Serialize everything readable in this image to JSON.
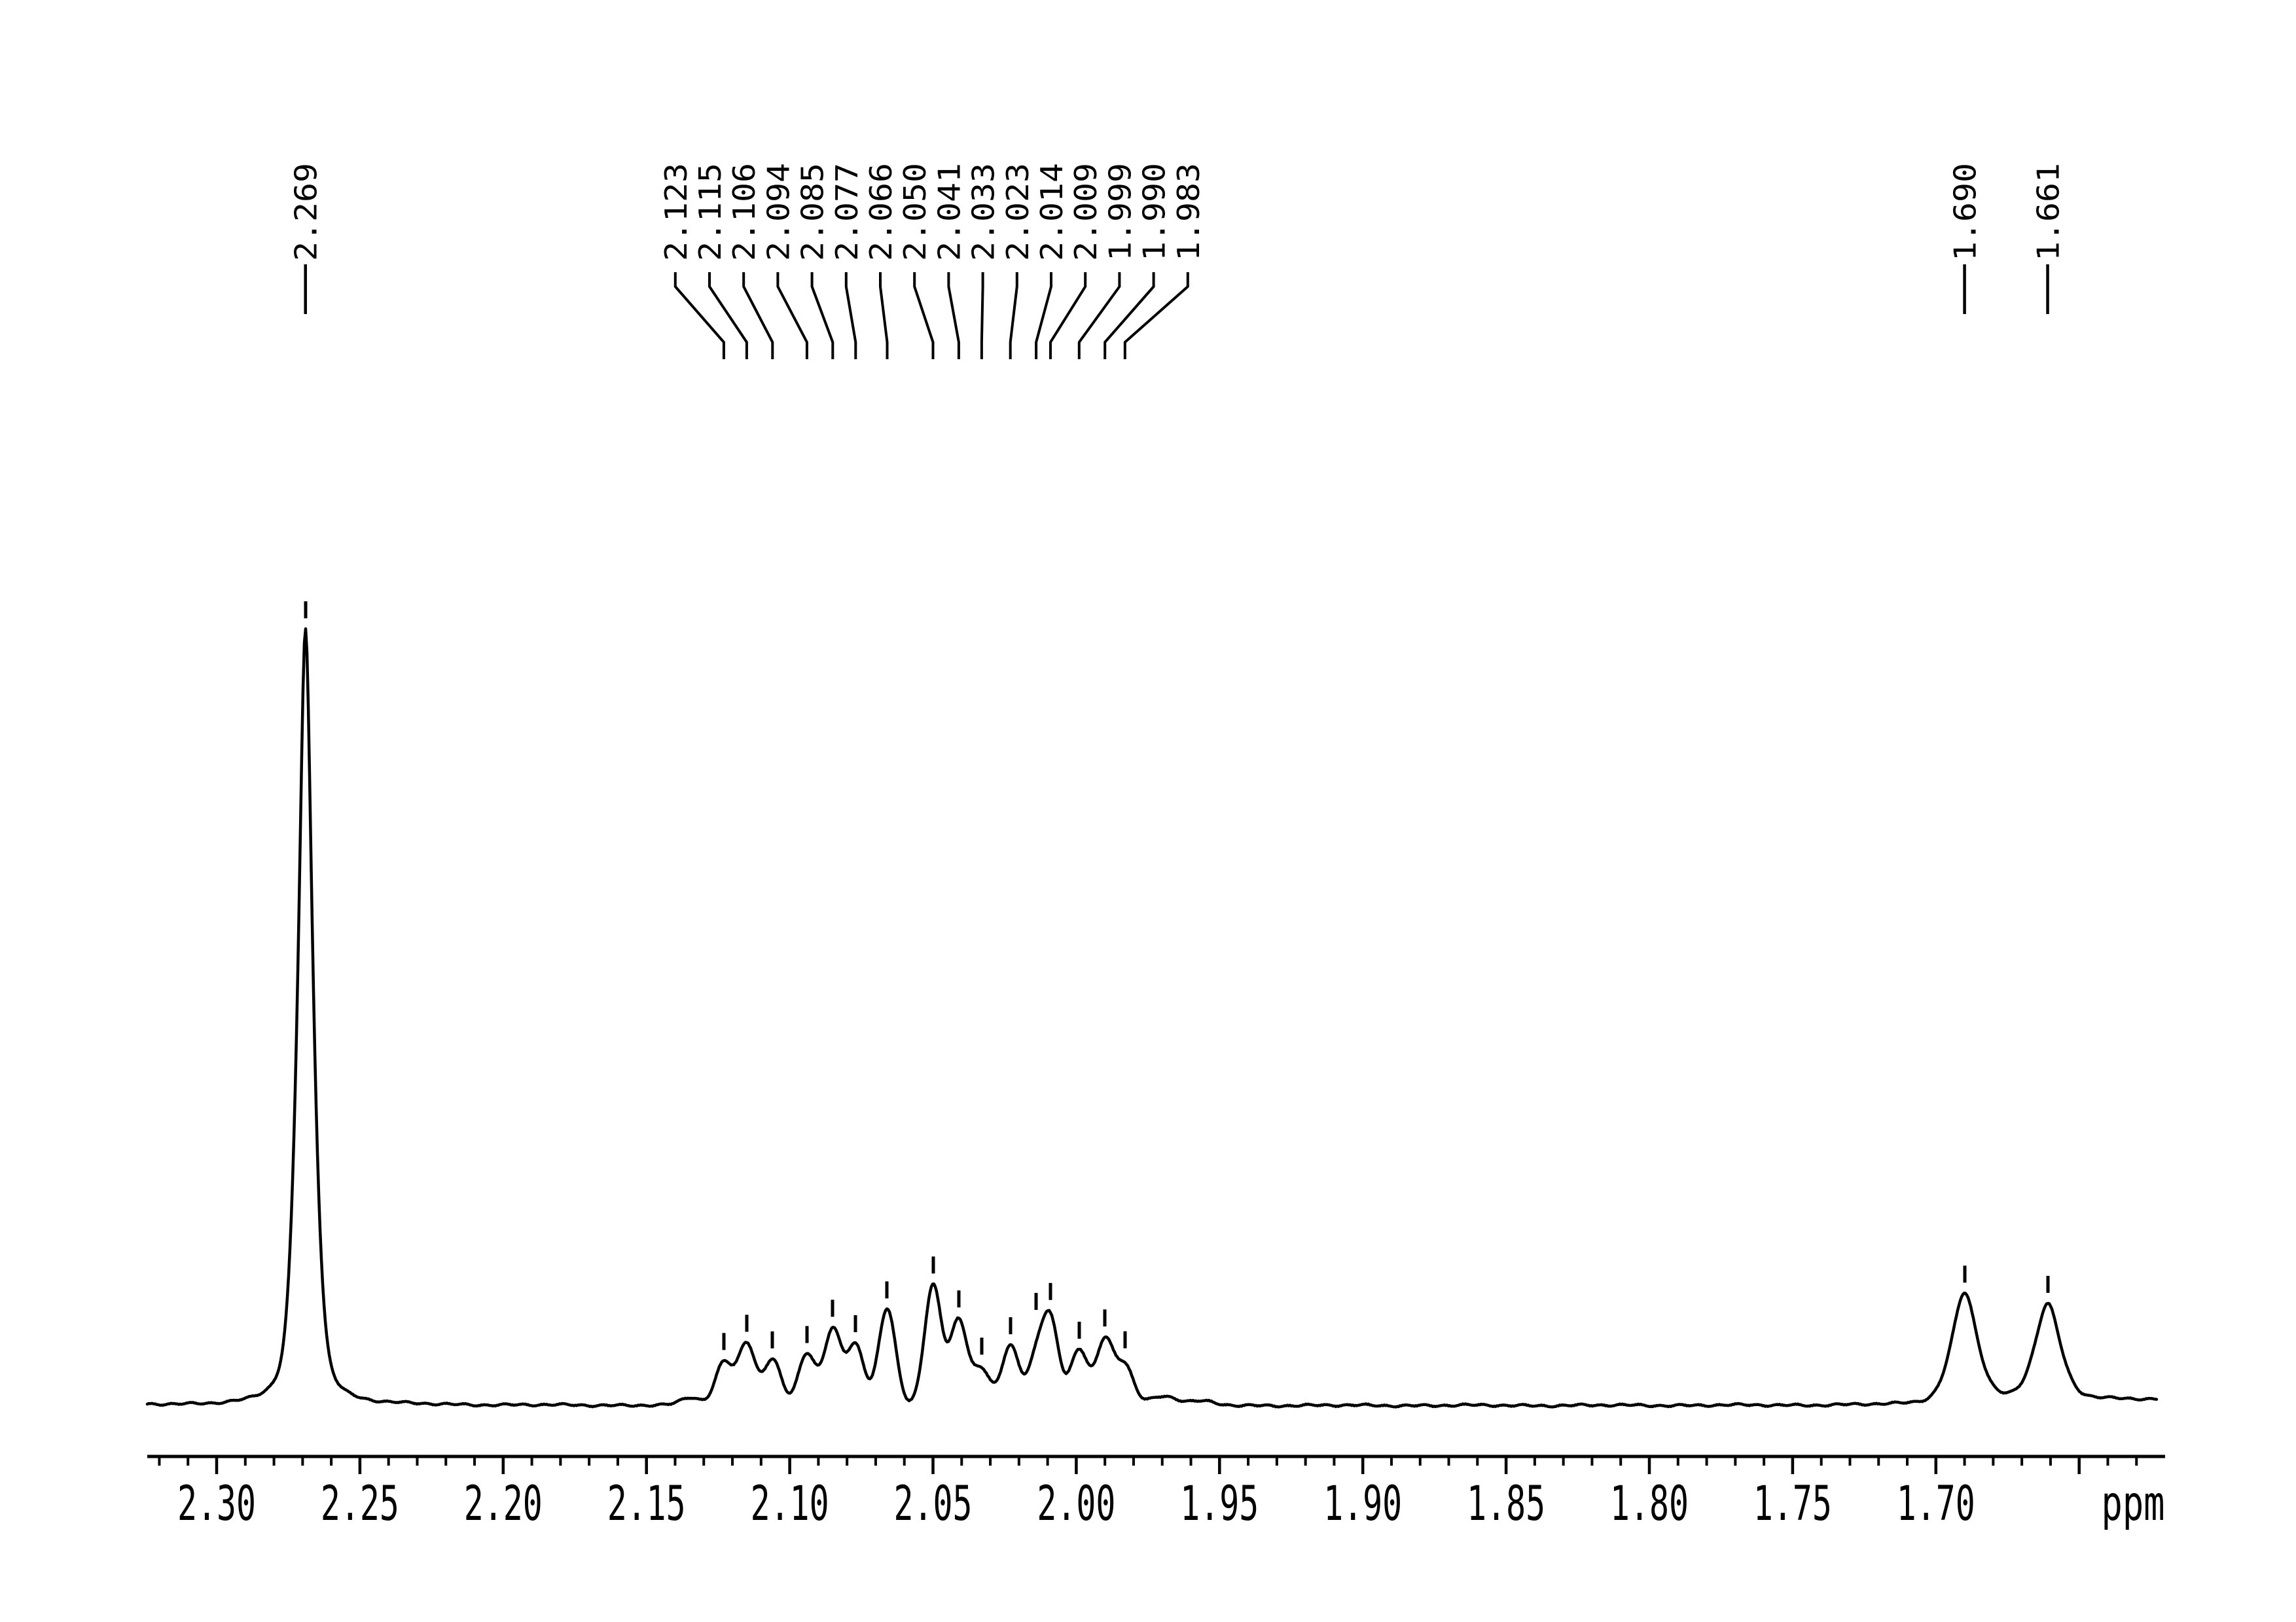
{
  "page": {
    "background_color": "#ffffff",
    "foreground_color": "#000000"
  },
  "chart_data": {
    "type": "line",
    "description": "1H NMR spectrum region with peak-picking labels",
    "xlabel": "ppm",
    "grid": false,
    "x_axis": {
      "unit_label": "ppm",
      "values_decrease_rightward": true,
      "visible_range_ppm": [
        2.325,
        1.62
      ],
      "major_tick_step": 0.05,
      "minor_tick_step": 0.01,
      "ticks": [
        {
          "ppm": 2.3,
          "label": "2.30"
        },
        {
          "ppm": 2.25,
          "label": "2.25"
        },
        {
          "ppm": 2.2,
          "label": "2.20"
        },
        {
          "ppm": 2.15,
          "label": "2.15"
        },
        {
          "ppm": 2.1,
          "label": "2.10"
        },
        {
          "ppm": 2.05,
          "label": "2.05"
        },
        {
          "ppm": 2.0,
          "label": "2.00"
        },
        {
          "ppm": 1.95,
          "label": "1.95"
        },
        {
          "ppm": 1.9,
          "label": "1.90"
        },
        {
          "ppm": 1.85,
          "label": "1.85"
        },
        {
          "ppm": 1.8,
          "label": "1.80"
        },
        {
          "ppm": 1.75,
          "label": "1.75"
        },
        {
          "ppm": 1.7,
          "label": "1.70"
        }
      ],
      "unlabeled_major_ticks": [
        1.65
      ]
    },
    "peaks": {
      "singlet": {
        "ppm": 2.269,
        "label": "2.269",
        "rel_height": 1.0,
        "fwhm_ppm": 0.005
      },
      "multiplet": {
        "fwhm_ppm": 0.007,
        "peaks": [
          {
            "ppm": 2.123,
            "label": "2.123",
            "rel_height": 0.055
          },
          {
            "ppm": 2.115,
            "label": "2.115",
            "rel_height": 0.081
          },
          {
            "ppm": 2.106,
            "label": "2.106",
            "rel_height": 0.059
          },
          {
            "ppm": 2.094,
            "label": "2.094",
            "rel_height": 0.067
          },
          {
            "ppm": 2.085,
            "label": "2.085",
            "rel_height": 0.097
          },
          {
            "ppm": 2.077,
            "label": "2.077",
            "rel_height": 0.078
          },
          {
            "ppm": 2.066,
            "label": "2.066",
            "rel_height": 0.125
          },
          {
            "ppm": 2.05,
            "label": "2.050",
            "rel_height": 0.154
          },
          {
            "ppm": 2.041,
            "label": "2.041",
            "rel_height": 0.11
          },
          {
            "ppm": 2.033,
            "label": "2.033",
            "rel_height": 0.046
          },
          {
            "ppm": 2.023,
            "label": "2.023",
            "rel_height": 0.078
          },
          {
            "ppm": 2.014,
            "label": "2.014",
            "rel_height": 0.055
          },
          {
            "ppm": 2.009,
            "label": "2.009",
            "rel_height": 0.105
          },
          {
            "ppm": 1.999,
            "label": "1.999",
            "rel_height": 0.072
          },
          {
            "ppm": 1.99,
            "label": "1.990",
            "rel_height": 0.084
          },
          {
            "ppm": 1.983,
            "label": "1.983",
            "rel_height": 0.051
          }
        ]
      },
      "right_singlets": {
        "fwhm_ppm": 0.0105,
        "peaks": [
          {
            "ppm": 1.69,
            "label": "1.690",
            "rel_height": 0.143
          },
          {
            "ppm": 1.661,
            "label": "1.661",
            "rel_height": 0.125
          }
        ]
      },
      "unlabeled_bumps": [
        {
          "ppm": 2.1345,
          "rel_height": 0.01
        },
        {
          "ppm": 1.9695,
          "rel_height": 0.012
        },
        {
          "ppm": 1.956,
          "rel_height": 0.005
        }
      ]
    }
  }
}
